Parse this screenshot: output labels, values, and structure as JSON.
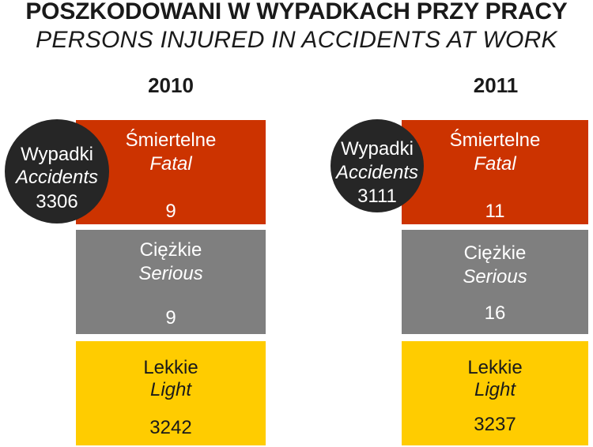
{
  "title": {
    "pl": "POSZKODOWANI W WYPADKACH PRZY PRACY",
    "en": "PERSONS INJURED IN ACCIDENTS AT WORK"
  },
  "colors": {
    "fatal": "#cc3300",
    "serious": "#7f7f7f",
    "light": "#ffcc00",
    "accidents": "#262626"
  },
  "panels": [
    {
      "year": "2010",
      "accidents": {
        "pl": "Wypadki",
        "en": "Accidents",
        "value": "3306"
      },
      "fatal": {
        "pl": "Śmiertelne",
        "en": "Fatal",
        "value": "9"
      },
      "serious": {
        "pl": "Ciężkie",
        "en": "Serious",
        "value": "9"
      },
      "light": {
        "pl": "Lekkie",
        "en": "Light",
        "value": "3242"
      }
    },
    {
      "year": "2011",
      "accidents": {
        "pl": "Wypadki",
        "en": "Accidents",
        "value": "3111"
      },
      "fatal": {
        "pl": "Śmiertelne",
        "en": "Fatal",
        "value": "11"
      },
      "serious": {
        "pl": "Ciężkie",
        "en": "Serious",
        "value": "16"
      },
      "light": {
        "pl": "Lekkie",
        "en": "Light",
        "value": "3237"
      }
    }
  ]
}
